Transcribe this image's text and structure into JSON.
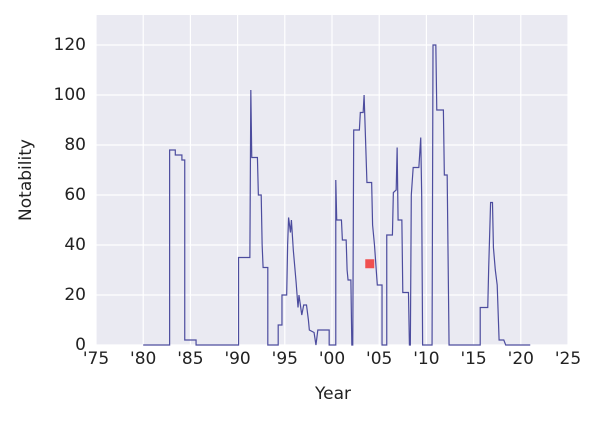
{
  "chart_data": {
    "type": "line",
    "xlabel": "Year",
    "ylabel": "Notability",
    "xlim": [
      1975,
      2025
    ],
    "xticks": [
      {
        "value": 1975,
        "label": "'75"
      },
      {
        "value": 1980,
        "label": "'80"
      },
      {
        "value": 1985,
        "label": "'85"
      },
      {
        "value": 1990,
        "label": "'90"
      },
      {
        "value": 1995,
        "label": "'95"
      },
      {
        "value": 2000,
        "label": "'00"
      },
      {
        "value": 2005,
        "label": "'05"
      },
      {
        "value": 2010,
        "label": "'10"
      },
      {
        "value": 2015,
        "label": "'15"
      },
      {
        "value": 2020,
        "label": "'20"
      },
      {
        "value": 2025,
        "label": "'25"
      }
    ],
    "ylim": [
      0,
      132
    ],
    "yticks": [
      0,
      20,
      40,
      60,
      80,
      100,
      120
    ],
    "grid": true,
    "series": [
      {
        "color": "#4c4c9e",
        "x": [
          1980.0,
          1982.8,
          1982.8,
          1983.4,
          1983.4,
          1984.1,
          1984.1,
          1984.4,
          1984.4,
          1985.6,
          1985.6,
          1990.1,
          1990.1,
          1991.3,
          1991.4,
          1991.5,
          1992.1,
          1992.2,
          1992.5,
          1992.6,
          1992.7,
          1993.2,
          1993.2,
          1994.3,
          1994.3,
          1994.7,
          1994.7,
          1995.2,
          1995.3,
          1995.4,
          1995.6,
          1995.7,
          1995.9,
          1996.2,
          1996.4,
          1996.5,
          1996.8,
          1997.0,
          1997.3,
          1997.5,
          1997.6,
          1998.1,
          1998.3,
          1998.5,
          1999.7,
          1999.7,
          2000.4,
          2000.4,
          2000.5,
          2001.0,
          2001.1,
          2001.5,
          2001.6,
          2001.7,
          2002.0,
          2002.1,
          2002.2,
          2002.3,
          2002.9,
          2003.0,
          2003.3,
          2003.4,
          2003.7,
          2004.2,
          2004.3,
          2004.5,
          2004.8,
          2005.3,
          2005.3,
          2005.8,
          2005.8,
          2006.4,
          2006.5,
          2006.8,
          2006.9,
          2007.0,
          2007.4,
          2007.5,
          2008.1,
          2008.2,
          2008.3,
          2008.4,
          2008.6,
          2009.2,
          2009.4,
          2009.5,
          2009.6,
          2010.6,
          2010.7,
          2011.0,
          2011.1,
          2011.8,
          2011.9,
          2012.2,
          2012.4,
          2015.7,
          2015.7,
          2016.5,
          2016.6,
          2016.8,
          2017.0,
          2017.1,
          2017.3,
          2017.5,
          2017.7,
          2018.2,
          2018.4,
          2021.0
        ],
        "values": [
          0,
          0,
          78,
          78,
          76,
          76,
          74,
          74,
          2,
          2,
          0,
          0,
          35,
          35,
          102,
          75,
          75,
          60,
          60,
          40,
          31,
          31,
          0,
          0,
          8,
          8,
          20,
          20,
          40,
          51,
          45,
          50,
          38,
          25,
          15,
          20,
          12,
          16,
          16,
          10,
          6,
          5,
          0,
          6,
          6,
          0,
          0,
          66,
          50,
          50,
          42,
          42,
          30,
          26,
          26,
          0,
          0,
          86,
          86,
          93,
          93,
          100,
          65,
          65,
          48,
          40,
          24,
          24,
          0,
          0,
          44,
          44,
          61,
          62,
          79,
          50,
          50,
          21,
          21,
          0,
          0,
          60,
          71,
          71,
          83,
          60,
          0,
          0,
          120,
          120,
          94,
          94,
          68,
          68,
          0,
          0,
          15,
          15,
          31,
          57,
          57,
          39,
          30,
          24,
          2,
          2,
          0,
          0
        ]
      }
    ],
    "points": {
      "color": "#f05050",
      "x": [
        2004.0
      ],
      "values": [
        32.5
      ]
    }
  }
}
